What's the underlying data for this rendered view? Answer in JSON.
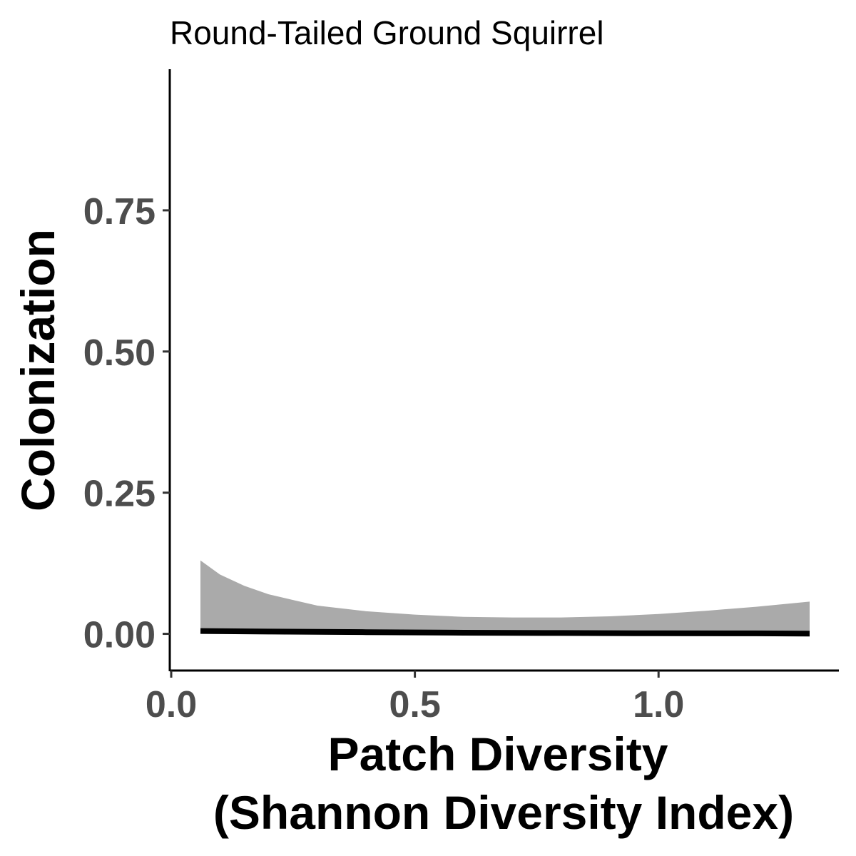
{
  "chart_data": {
    "type": "line",
    "title": "Round-Tailed Ground Squirrel",
    "xlabel": [
      "Patch Diversity",
      "(Shannon Diversity Index)"
    ],
    "ylabel": "Colonization",
    "xlim": [
      0.0,
      1.37
    ],
    "ylim": [
      -0.065,
      1.0
    ],
    "x_ticks": [
      {
        "value": 0.0,
        "label": "0.0"
      },
      {
        "value": 0.5,
        "label": "0.5"
      },
      {
        "value": 1.0,
        "label": "1.0"
      }
    ],
    "y_ticks": [
      {
        "value": 0.0,
        "label": "0.00"
      },
      {
        "value": 0.25,
        "label": "0.25"
      },
      {
        "value": 0.5,
        "label": "0.50"
      },
      {
        "value": 0.75,
        "label": "0.75"
      }
    ],
    "grid": false,
    "series": [
      {
        "type": "line",
        "color": "#000000",
        "x": [
          0.06,
          0.2,
          0.4,
          0.6,
          0.8,
          1.0,
          1.2,
          1.31
        ],
        "y": [
          0.005,
          0.004,
          0.003,
          0.002,
          0.0015,
          0.001,
          0.0008,
          0.0005
        ]
      },
      {
        "type": "ribbon",
        "color": "#aaaaaa",
        "x": [
          0.06,
          0.1,
          0.15,
          0.2,
          0.25,
          0.3,
          0.4,
          0.5,
          0.6,
          0.7,
          0.8,
          0.9,
          1.0,
          1.1,
          1.2,
          1.31
        ],
        "lower": [
          0.0,
          0.0,
          0.0,
          0.0,
          0.0,
          0.0,
          0.0,
          0.0,
          0.0,
          0.0,
          0.0,
          0.0,
          0.0,
          0.0,
          0.0,
          0.0
        ],
        "upper": [
          0.13,
          0.105,
          0.085,
          0.07,
          0.06,
          0.05,
          0.04,
          0.034,
          0.03,
          0.029,
          0.029,
          0.031,
          0.035,
          0.041,
          0.048,
          0.057
        ]
      }
    ]
  }
}
